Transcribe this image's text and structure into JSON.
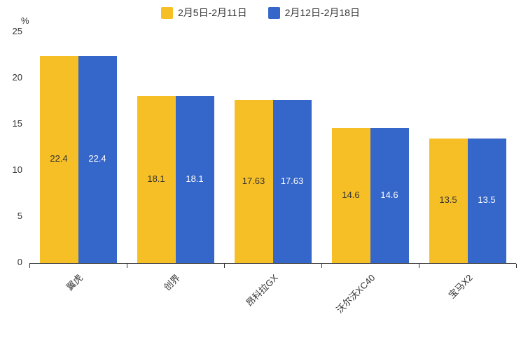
{
  "axes": {
    "y_unit": "%",
    "y_ticks": [
      0,
      5,
      10,
      15,
      20,
      25
    ]
  },
  "chart_data": {
    "type": "bar",
    "categories": [
      "翼虎",
      "创界",
      "昂科拉GX",
      "沃尔沃XC40",
      "宝马X2"
    ],
    "series": [
      {
        "name": "2月5日-2月11日",
        "color": "#F6BF26",
        "label_color": "#333333",
        "values": [
          22.4,
          18.1,
          17.63,
          14.6,
          13.5
        ]
      },
      {
        "name": "2月12日-2月18日",
        "color": "#3566C9",
        "label_color": "#ffffff",
        "values": [
          22.4,
          18.1,
          17.63,
          14.6,
          13.5
        ]
      }
    ],
    "title": "",
    "xlabel": "",
    "ylabel": "%",
    "ylim": [
      0,
      25
    ],
    "grid": "off",
    "legend_position": "top"
  }
}
